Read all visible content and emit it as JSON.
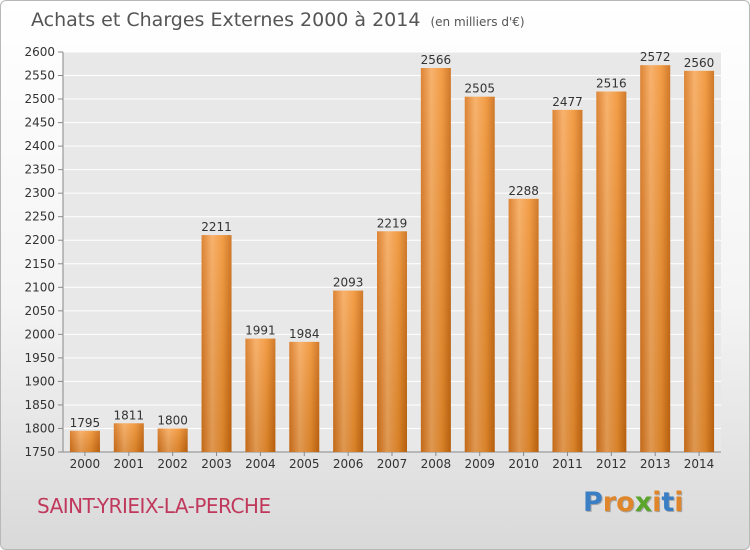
{
  "header": {
    "title": "Achats et Charges Externes 2000 à 2014",
    "unit": "(en milliers d'€)"
  },
  "footer": {
    "commune": "SAINT-YRIEIX-LA-PERCHE",
    "logo_text": "Proxiti"
  },
  "colors": {
    "bar": "#f0902e",
    "bar_light": "#f7a85a",
    "bar_dark": "#d8741a",
    "commune": "#c0395d",
    "logo_letters": [
      "#3a7fc4",
      "#e0862a",
      "#e0862a",
      "#5aa52c",
      "#e0862a",
      "#3a7fc4",
      "#e0862a"
    ]
  },
  "chart_data": {
    "type": "bar",
    "title": "Achats et Charges Externes 2000 à 2014",
    "subtitle": "(en milliers d'€)",
    "categories": [
      "2000",
      "2001",
      "2002",
      "2003",
      "2004",
      "2005",
      "2006",
      "2007",
      "2008",
      "2009",
      "2010",
      "2011",
      "2012",
      "2013",
      "2014"
    ],
    "values": [
      1795,
      1811,
      1800,
      2211,
      1991,
      1984,
      2093,
      2219,
      2566,
      2505,
      2288,
      2477,
      2516,
      2572,
      2560
    ],
    "ylim": [
      1750,
      2600
    ],
    "yticks": [
      1750,
      1800,
      1850,
      1900,
      1950,
      2000,
      2050,
      2100,
      2150,
      2200,
      2250,
      2300,
      2350,
      2400,
      2450,
      2500,
      2550,
      2600
    ],
    "grid": true,
    "xlabel": "",
    "ylabel": ""
  }
}
